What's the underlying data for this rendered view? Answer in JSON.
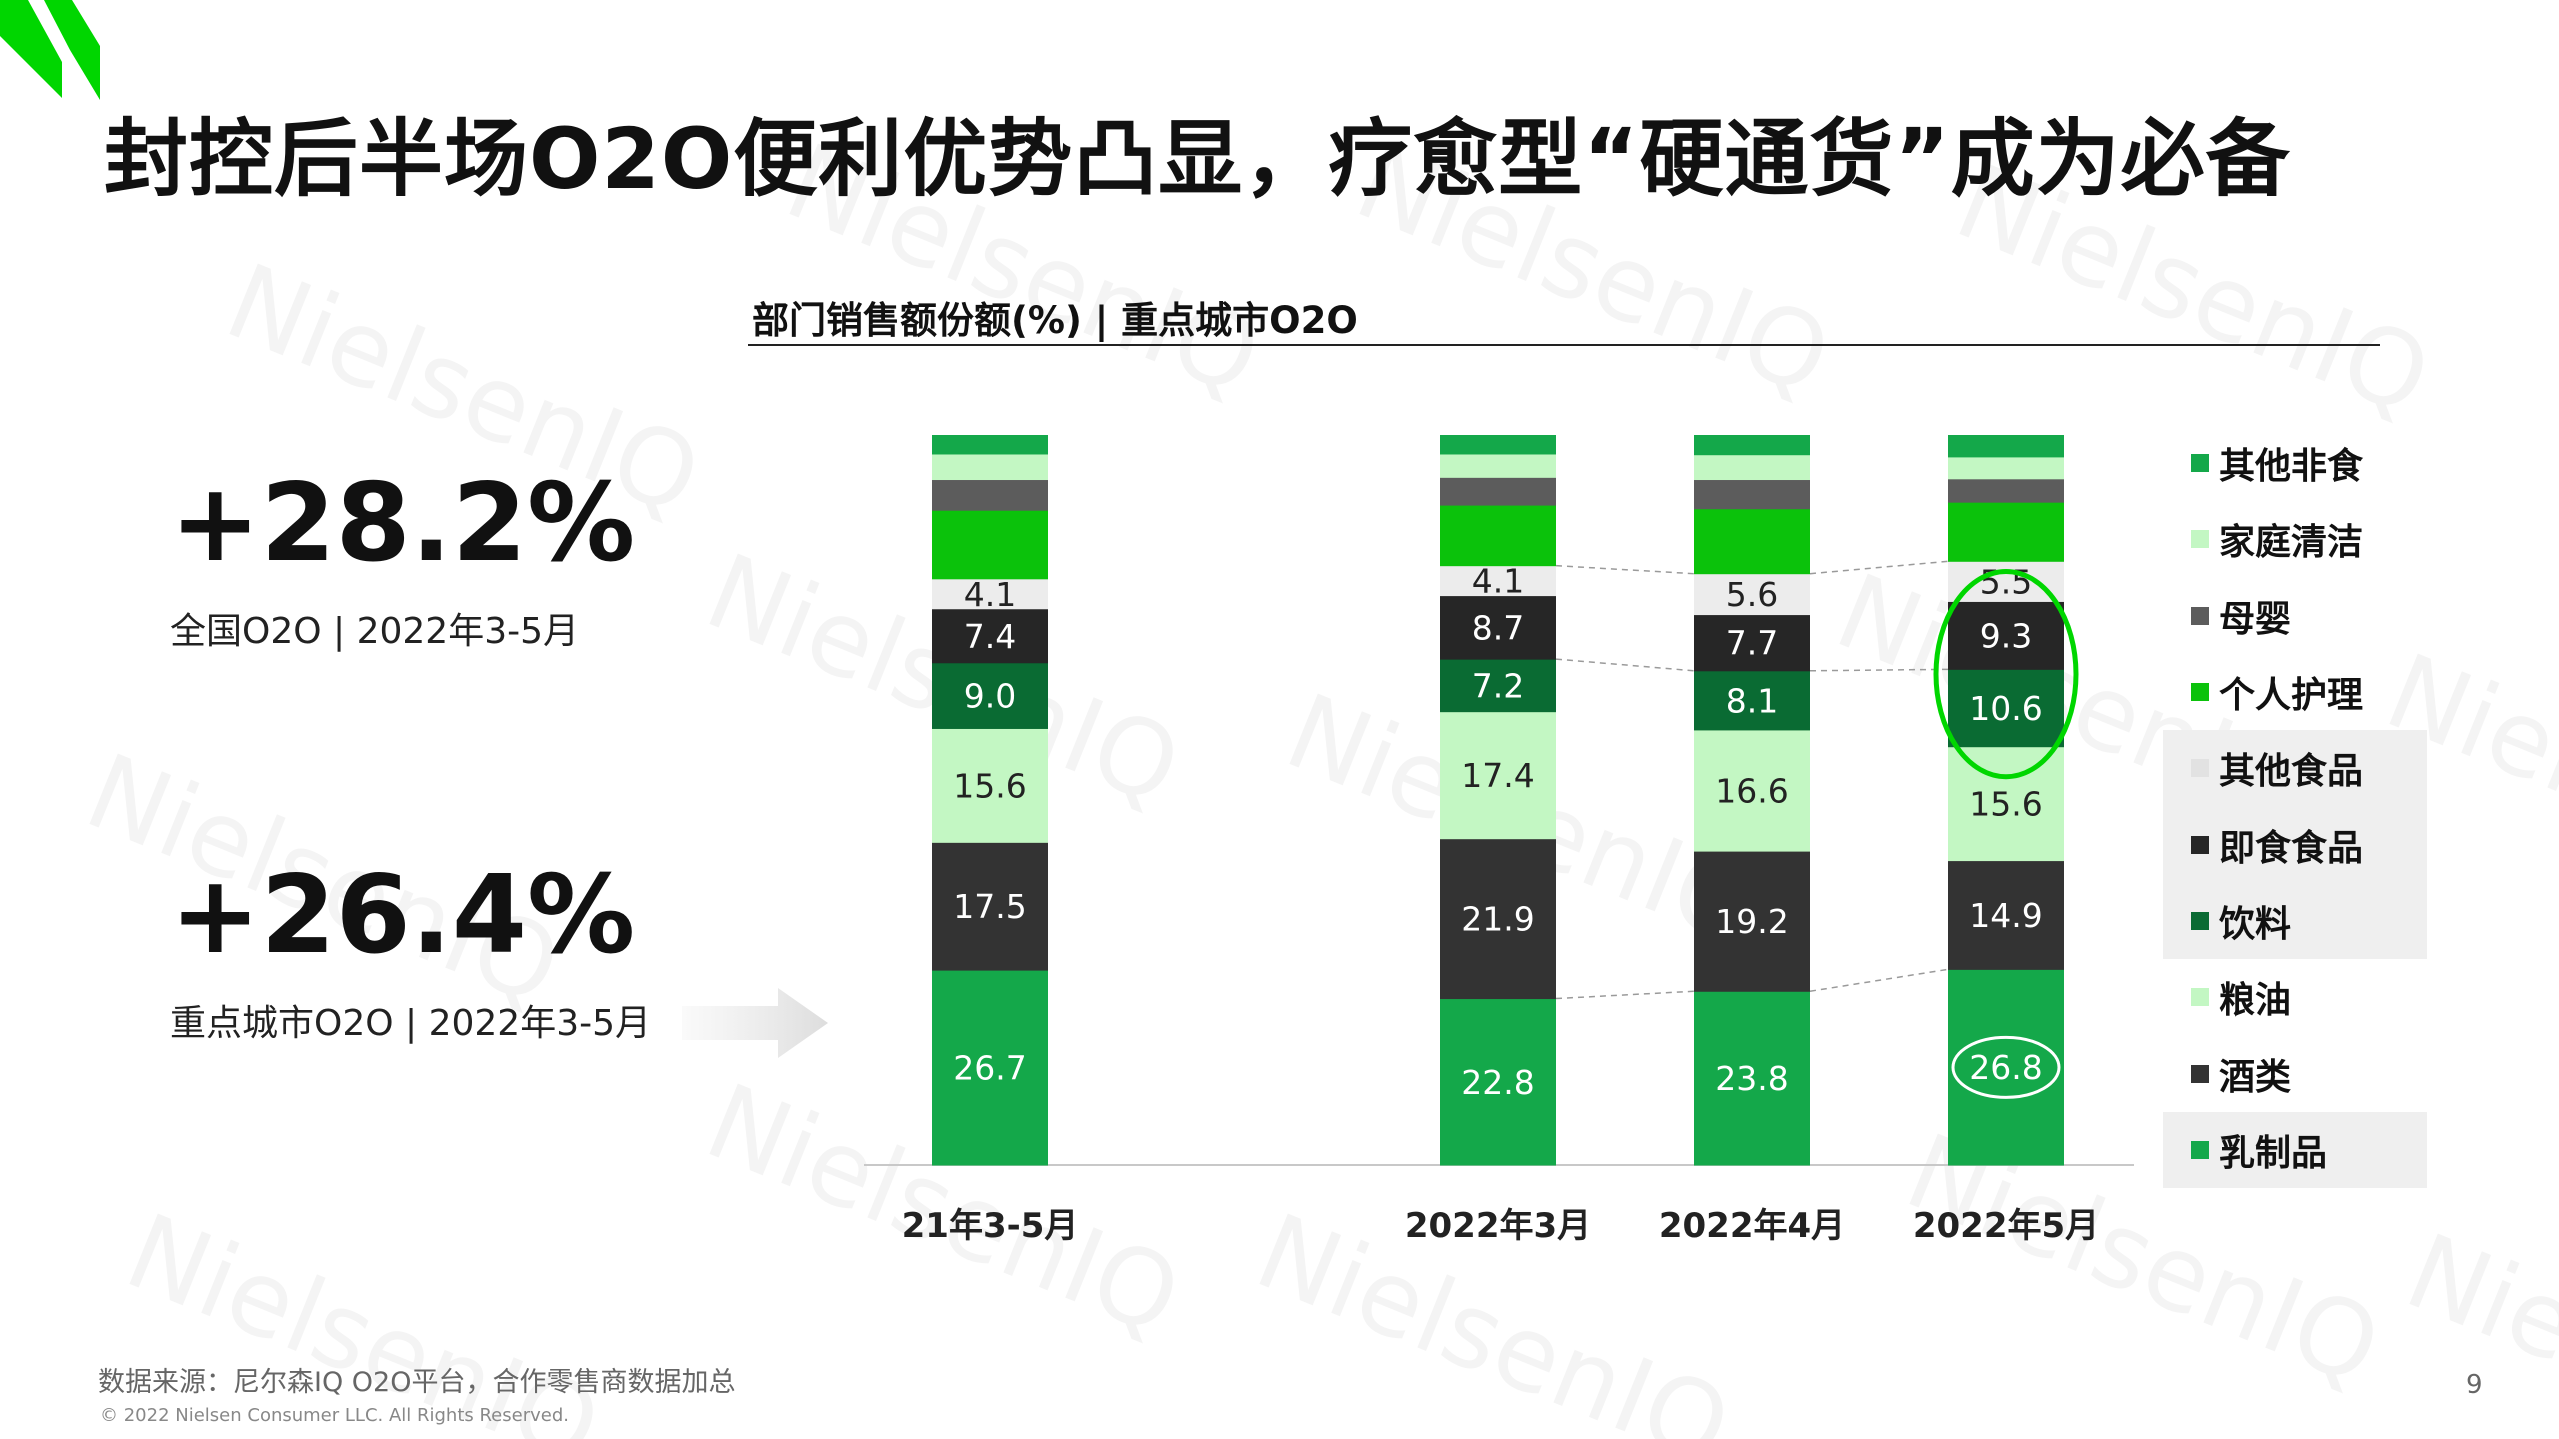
{
  "slide": {
    "title": "封控后半场O2O便利优势凸显，疗愈型“硬通货”成为必备",
    "page_number": "9",
    "source_note": "数据来源：尼尔森IQ O2O平台，合作零售商数据加总",
    "copyright": "© 2022 Nielsen Consumer LLC. All Rights Reserved.",
    "watermark_text": "NielsenIQ",
    "accent_color": "#00d600"
  },
  "kpis": [
    {
      "value": "+28.2%",
      "label": "全国O2O | 2022年3-5月"
    },
    {
      "value": "+26.4%",
      "label": "重点城市O2O | 2022年3-5月"
    }
  ],
  "chart_data": {
    "type": "bar",
    "stacked": true,
    "title": "部门销售额份额(%) | 重点城市O2O",
    "categories": [
      "21年3-5月",
      "2022年3月",
      "2022年4月",
      "2022年5月"
    ],
    "ylim": [
      0,
      100
    ],
    "grid": false,
    "legend_position": "right",
    "series": [
      {
        "name": "乳制品",
        "color": "#14a84a",
        "text_color": "#ffffff",
        "values": [
          26.7,
          22.8,
          23.8,
          26.8
        ],
        "labels": [
          "26.7",
          "22.8",
          "23.8",
          "26.8"
        ]
      },
      {
        "name": "酒类",
        "color": "#333333",
        "text_color": "#ffffff",
        "values": [
          17.5,
          21.9,
          19.2,
          14.9
        ],
        "labels": [
          "17.5",
          "21.9",
          "19.2",
          "14.9"
        ]
      },
      {
        "name": "粮油",
        "color": "#c3f7c3",
        "text_color": "#222222",
        "values": [
          15.6,
          17.4,
          16.6,
          15.6
        ],
        "labels": [
          "15.6",
          "17.4",
          "16.6",
          "15.6"
        ]
      },
      {
        "name": "饮料",
        "color": "#0a6b33",
        "text_color": "#ffffff",
        "values": [
          9.0,
          7.2,
          8.1,
          10.6
        ],
        "labels": [
          "9.0",
          "7.2",
          "8.1",
          "10.6"
        ]
      },
      {
        "name": "即食食品",
        "color": "#262626",
        "text_color": "#ffffff",
        "values": [
          7.4,
          8.7,
          7.7,
          9.3
        ],
        "labels": [
          "7.4",
          "8.7",
          "7.7",
          "9.3"
        ]
      },
      {
        "name": "其他食品",
        "color": "#ececec",
        "text_color": "#222222",
        "values": [
          4.1,
          4.1,
          5.6,
          5.5
        ],
        "labels": [
          "4.1",
          "4.1",
          "5.6",
          "5.5"
        ]
      },
      {
        "name": "个人护理",
        "color": "#0bc20b",
        "text_color": "#ffffff",
        "values": [
          9.4,
          8.3,
          8.9,
          8.1
        ],
        "labels": [
          "",
          "",
          "",
          ""
        ]
      },
      {
        "name": "母婴",
        "color": "#5c5c5c",
        "text_color": "#ffffff",
        "values": [
          4.2,
          3.8,
          4.0,
          3.2
        ],
        "labels": [
          "",
          "",
          "",
          ""
        ]
      },
      {
        "name": "家庭清洁",
        "color": "#c3f7c3",
        "text_color": "#222222",
        "values": [
          3.5,
          3.2,
          3.4,
          3.0
        ],
        "labels": [
          "",
          "",
          "",
          ""
        ]
      },
      {
        "name": "其他非食",
        "color": "#14a84a",
        "text_color": "#ffffff",
        "values": [
          2.6,
          2.6,
          2.7,
          3.0
        ],
        "labels": [
          "",
          "",
          "",
          ""
        ]
      }
    ],
    "legend_order": [
      "其他非食",
      "家庭清洁",
      "母婴",
      "个人护理",
      "其他食品",
      "即食食品",
      "饮料",
      "粮油",
      "酒类",
      "乳制品"
    ],
    "highlighted_legend": [
      "其他食品",
      "即食食品",
      "饮料",
      "乳制品"
    ],
    "circled": [
      {
        "category": "2022年5月",
        "series": [
          "即食食品",
          "饮料"
        ],
        "shape": "ellipse"
      },
      {
        "category": "2022年5月",
        "series": [
          "乳制品"
        ],
        "shape": "ellipse"
      }
    ]
  }
}
